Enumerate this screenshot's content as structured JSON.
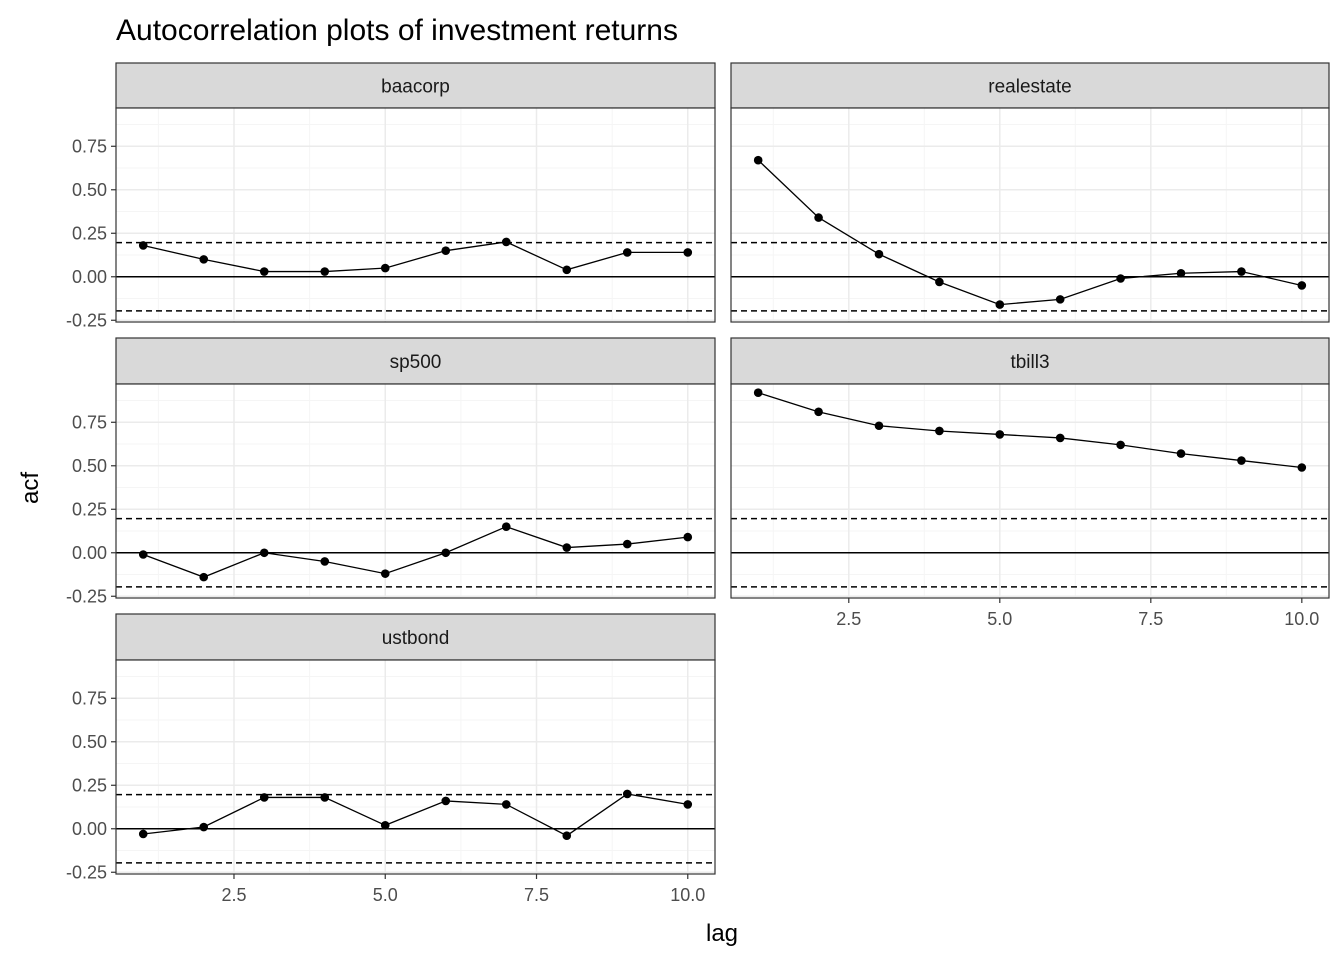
{
  "chart_data": {
    "type": "line",
    "title": "Autocorrelation plots of investment returns",
    "xlabel": "lag",
    "ylabel": "acf",
    "facet_layout": "2 columns, 3 rows",
    "xlim": [
      0.55,
      10.45
    ],
    "ylim": [
      -0.26,
      0.97
    ],
    "x_ticks": [
      "2.5",
      "5.0",
      "7.5",
      "10.0"
    ],
    "y_ticks": [
      "-0.25",
      "0.00",
      "0.25",
      "0.50",
      "0.75"
    ],
    "x": [
      1,
      2,
      3,
      4,
      5,
      6,
      7,
      8,
      9,
      10
    ],
    "reference_lines": [
      {
        "y": 0,
        "style": "solid"
      },
      {
        "y": 0.196,
        "style": "dashed"
      },
      {
        "y": -0.196,
        "style": "dashed"
      }
    ],
    "grid": true,
    "series": [
      {
        "name": "baacorp",
        "values": [
          0.18,
          0.1,
          0.03,
          0.03,
          0.05,
          0.15,
          0.2,
          0.04,
          0.14,
          0.14
        ]
      },
      {
        "name": "realestate",
        "values": [
          0.67,
          0.34,
          0.13,
          -0.03,
          -0.16,
          -0.13,
          -0.01,
          0.02,
          0.03,
          -0.05
        ]
      },
      {
        "name": "sp500",
        "values": [
          -0.01,
          -0.14,
          0.0,
          -0.05,
          -0.12,
          0.0,
          0.15,
          0.03,
          0.05,
          0.09
        ]
      },
      {
        "name": "tbill3",
        "values": [
          0.92,
          0.81,
          0.73,
          0.7,
          0.68,
          0.66,
          0.62,
          0.57,
          0.53,
          0.49
        ]
      },
      {
        "name": "ustbond",
        "values": [
          -0.03,
          0.01,
          0.18,
          0.18,
          0.02,
          0.16,
          0.14,
          -0.04,
          0.2,
          0.14
        ]
      }
    ]
  },
  "colors": {
    "strip_fill": "#d9d9d9",
    "panel_border": "#333333",
    "grid_major": "#ebebeb",
    "grid_minor": "#f5f5f5",
    "axis_text": "#4d4d4d",
    "series": "#000000"
  }
}
